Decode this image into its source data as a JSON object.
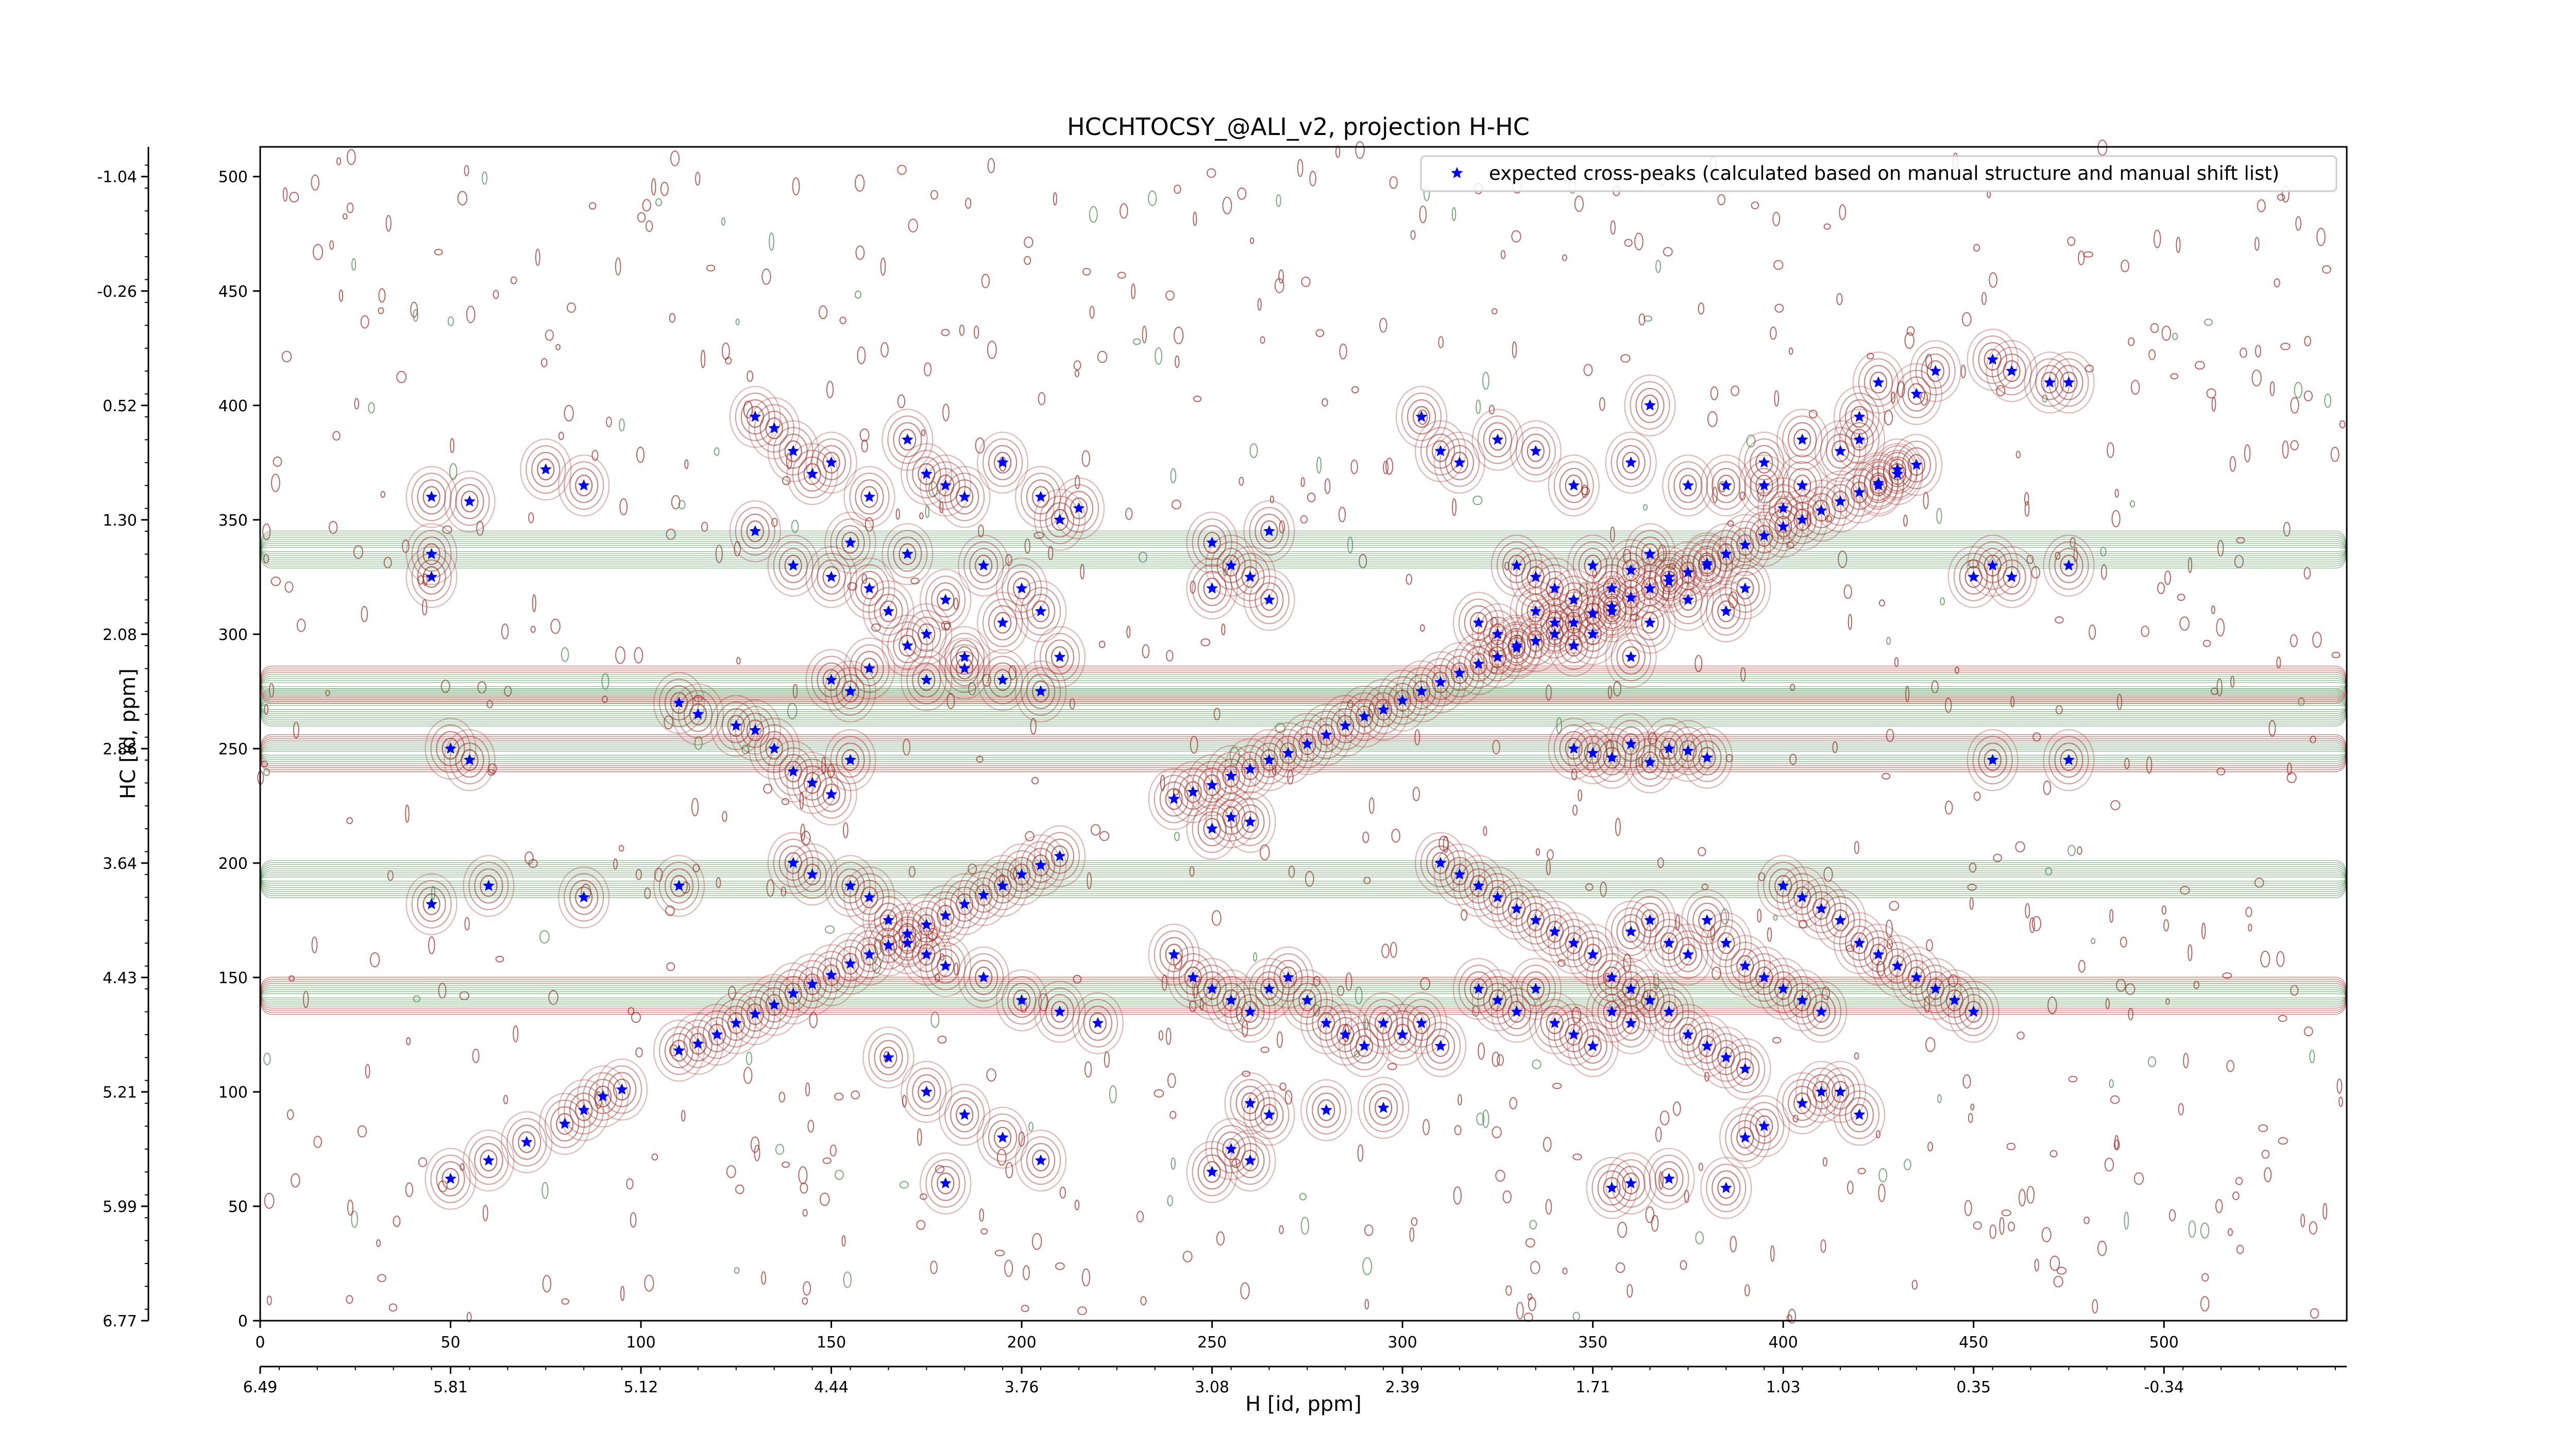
{
  "chart_data": {
    "type": "scatter",
    "title": "HCCHTOCSY_@ALI_v2, projection H-HC",
    "xlabel": "H [id, ppm]",
    "ylabel": "HC [id, ppm]",
    "xlim": [
      0,
      548
    ],
    "ylim": [
      0,
      513
    ],
    "x_ticks": [
      "0",
      "50",
      "100",
      "150",
      "200",
      "250",
      "300",
      "350",
      "400",
      "450",
      "500"
    ],
    "y_ticks": [
      "0",
      "50",
      "100",
      "150",
      "200",
      "250",
      "300",
      "350",
      "400",
      "450",
      "500"
    ],
    "x_secondary_ticks": {
      "positions": [
        0,
        50,
        100,
        150,
        200,
        250,
        300,
        350,
        400,
        450,
        500
      ],
      "labels": [
        "6.49",
        "5.81",
        "5.12",
        "4.44",
        "3.76",
        "3.08",
        "2.39",
        "1.71",
        "1.03",
        "0.35",
        "-0.34"
      ]
    },
    "y_secondary_ticks": {
      "positions": [
        0,
        50,
        100,
        150,
        200,
        250,
        300,
        350,
        400,
        450,
        500
      ],
      "labels": [
        "6.77",
        "5.99",
        "5.21",
        "4.43",
        "3.64",
        "2.86",
        "2.08",
        "1.30",
        "0.52",
        "-0.26",
        "-1.04"
      ]
    },
    "legend": {
      "placement": "top-right",
      "entries": [
        "expected cross-peaks (calculated based on manual structure and manual shift list)"
      ]
    },
    "grid": false,
    "series": [
      {
        "name": "expected cross-peaks (calculated based on manual structure and manual shift list)",
        "marker": "star",
        "color": "#0000ff",
        "points": [
          [
            110,
            118
          ],
          [
            115,
            121
          ],
          [
            120,
            125
          ],
          [
            125,
            130
          ],
          [
            130,
            134
          ],
          [
            135,
            138
          ],
          [
            140,
            143
          ],
          [
            145,
            147
          ],
          [
            150,
            151
          ],
          [
            155,
            156
          ],
          [
            160,
            160
          ],
          [
            165,
            164
          ],
          [
            170,
            169
          ],
          [
            175,
            173
          ],
          [
            180,
            177
          ],
          [
            185,
            182
          ],
          [
            190,
            186
          ],
          [
            195,
            190
          ],
          [
            200,
            195
          ],
          [
            205,
            199
          ],
          [
            210,
            203
          ],
          [
            240,
            228
          ],
          [
            245,
            231
          ],
          [
            250,
            234
          ],
          [
            255,
            238
          ],
          [
            260,
            241
          ],
          [
            265,
            245
          ],
          [
            270,
            248
          ],
          [
            275,
            252
          ],
          [
            280,
            256
          ],
          [
            285,
            260
          ],
          [
            290,
            264
          ],
          [
            295,
            267
          ],
          [
            300,
            271
          ],
          [
            305,
            275
          ],
          [
            310,
            279
          ],
          [
            315,
            283
          ],
          [
            320,
            287
          ],
          [
            325,
            290
          ],
          [
            330,
            294
          ],
          [
            335,
            297
          ],
          [
            340,
            300
          ],
          [
            345,
            305
          ],
          [
            350,
            309
          ],
          [
            355,
            312
          ],
          [
            360,
            316
          ],
          [
            365,
            320
          ],
          [
            370,
            323
          ],
          [
            375,
            327
          ],
          [
            380,
            331
          ],
          [
            385,
            335
          ],
          [
            390,
            339
          ],
          [
            395,
            343
          ],
          [
            400,
            347
          ],
          [
            405,
            350
          ],
          [
            410,
            354
          ],
          [
            415,
            358
          ],
          [
            420,
            362
          ],
          [
            425,
            366
          ],
          [
            430,
            370
          ],
          [
            435,
            374
          ],
          [
            50,
            62
          ],
          [
            60,
            70
          ],
          [
            70,
            78
          ],
          [
            80,
            86
          ],
          [
            85,
            92
          ],
          [
            90,
            98
          ],
          [
            95,
            101
          ],
          [
            45,
            360
          ],
          [
            55,
            358
          ],
          [
            75,
            372
          ],
          [
            85,
            365
          ],
          [
            45,
            325
          ],
          [
            45,
            335
          ],
          [
            45,
            182
          ],
          [
            60,
            190
          ],
          [
            85,
            185
          ],
          [
            110,
            190
          ],
          [
            55,
            245
          ],
          [
            50,
            250
          ],
          [
            250,
            215
          ],
          [
            255,
            220
          ],
          [
            260,
            218
          ],
          [
            345,
            250
          ],
          [
            350,
            248
          ],
          [
            355,
            246
          ],
          [
            360,
            252
          ],
          [
            365,
            244
          ],
          [
            370,
            250
          ],
          [
            375,
            249
          ],
          [
            380,
            246
          ],
          [
            455,
            245
          ],
          [
            475,
            245
          ],
          [
            460,
            415
          ],
          [
            470,
            410
          ],
          [
            475,
            410
          ],
          [
            455,
            420
          ],
          [
            440,
            415
          ],
          [
            425,
            410
          ],
          [
            435,
            405
          ],
          [
            455,
            330
          ],
          [
            460,
            325
          ],
          [
            475,
            330
          ],
          [
            450,
            325
          ],
          [
            250,
            340
          ],
          [
            255,
            330
          ],
          [
            260,
            325
          ],
          [
            265,
            345
          ],
          [
            250,
            320
          ],
          [
            265,
            315
          ],
          [
            405,
            365
          ],
          [
            425,
            365
          ],
          [
            395,
            375
          ],
          [
            420,
            385
          ],
          [
            430,
            372
          ],
          [
            400,
            355
          ],
          [
            330,
            330
          ],
          [
            335,
            325
          ],
          [
            340,
            320
          ],
          [
            345,
            315
          ],
          [
            350,
            330
          ],
          [
            355,
            320
          ],
          [
            360,
            328
          ],
          [
            365,
            335
          ],
          [
            370,
            325
          ],
          [
            375,
            315
          ],
          [
            380,
            330
          ],
          [
            385,
            310
          ],
          [
            390,
            320
          ],
          [
            320,
            305
          ],
          [
            325,
            300
          ],
          [
            330,
            295
          ],
          [
            335,
            310
          ],
          [
            340,
            305
          ],
          [
            345,
            295
          ],
          [
            350,
            300
          ],
          [
            355,
            310
          ],
          [
            360,
            290
          ],
          [
            365,
            305
          ],
          [
            305,
            395
          ],
          [
            310,
            380
          ],
          [
            315,
            375
          ],
          [
            325,
            385
          ],
          [
            335,
            380
          ],
          [
            345,
            365
          ],
          [
            360,
            375
          ],
          [
            365,
            400
          ],
          [
            375,
            365
          ],
          [
            385,
            365
          ],
          [
            395,
            365
          ],
          [
            405,
            385
          ],
          [
            415,
            380
          ],
          [
            420,
            395
          ],
          [
            130,
            395
          ],
          [
            135,
            390
          ],
          [
            140,
            380
          ],
          [
            145,
            370
          ],
          [
            150,
            375
          ],
          [
            160,
            360
          ],
          [
            170,
            385
          ],
          [
            175,
            370
          ],
          [
            180,
            365
          ],
          [
            185,
            360
          ],
          [
            195,
            375
          ],
          [
            205,
            360
          ],
          [
            210,
            350
          ],
          [
            215,
            355
          ],
          [
            130,
            345
          ],
          [
            140,
            330
          ],
          [
            150,
            325
          ],
          [
            155,
            340
          ],
          [
            160,
            320
          ],
          [
            165,
            310
          ],
          [
            170,
            335
          ],
          [
            175,
            300
          ],
          [
            180,
            315
          ],
          [
            185,
            290
          ],
          [
            190,
            330
          ],
          [
            195,
            305
          ],
          [
            200,
            320
          ],
          [
            205,
            310
          ],
          [
            210,
            290
          ],
          [
            150,
            280
          ],
          [
            155,
            275
          ],
          [
            160,
            285
          ],
          [
            170,
            295
          ],
          [
            175,
            280
          ],
          [
            185,
            285
          ],
          [
            195,
            280
          ],
          [
            205,
            275
          ],
          [
            110,
            270
          ],
          [
            115,
            265
          ],
          [
            125,
            260
          ],
          [
            130,
            258
          ],
          [
            135,
            250
          ],
          [
            140,
            240
          ],
          [
            145,
            235
          ],
          [
            150,
            230
          ],
          [
            155,
            245
          ],
          [
            140,
            200
          ],
          [
            145,
            195
          ],
          [
            155,
            190
          ],
          [
            160,
            185
          ],
          [
            165,
            175
          ],
          [
            170,
            165
          ],
          [
            175,
            160
          ],
          [
            180,
            155
          ],
          [
            190,
            150
          ],
          [
            200,
            140
          ],
          [
            210,
            135
          ],
          [
            220,
            130
          ],
          [
            165,
            115
          ],
          [
            175,
            100
          ],
          [
            185,
            90
          ],
          [
            195,
            80
          ],
          [
            205,
            70
          ],
          [
            180,
            60
          ],
          [
            240,
            160
          ],
          [
            245,
            150
          ],
          [
            250,
            145
          ],
          [
            255,
            140
          ],
          [
            260,
            135
          ],
          [
            265,
            145
          ],
          [
            270,
            150
          ],
          [
            275,
            140
          ],
          [
            280,
            130
          ],
          [
            285,
            125
          ],
          [
            290,
            120
          ],
          [
            295,
            130
          ],
          [
            300,
            125
          ],
          [
            305,
            130
          ],
          [
            310,
            120
          ],
          [
            260,
            95
          ],
          [
            265,
            90
          ],
          [
            280,
            92
          ],
          [
            295,
            93
          ],
          [
            255,
            75
          ],
          [
            260,
            70
          ],
          [
            250,
            65
          ],
          [
            310,
            200
          ],
          [
            315,
            195
          ],
          [
            320,
            190
          ],
          [
            325,
            185
          ],
          [
            330,
            180
          ],
          [
            335,
            175
          ],
          [
            340,
            170
          ],
          [
            345,
            165
          ],
          [
            350,
            160
          ],
          [
            355,
            150
          ],
          [
            360,
            145
          ],
          [
            365,
            140
          ],
          [
            370,
            135
          ],
          [
            375,
            125
          ],
          [
            380,
            120
          ],
          [
            385,
            115
          ],
          [
            390,
            110
          ],
          [
            320,
            145
          ],
          [
            325,
            140
          ],
          [
            330,
            135
          ],
          [
            335,
            145
          ],
          [
            340,
            130
          ],
          [
            345,
            125
          ],
          [
            350,
            120
          ],
          [
            355,
            135
          ],
          [
            360,
            130
          ],
          [
            360,
            170
          ],
          [
            365,
            175
          ],
          [
            370,
            165
          ],
          [
            375,
            160
          ],
          [
            380,
            175
          ],
          [
            385,
            165
          ],
          [
            390,
            155
          ],
          [
            395,
            150
          ],
          [
            400,
            145
          ],
          [
            405,
            140
          ],
          [
            410,
            135
          ],
          [
            400,
            190
          ],
          [
            405,
            185
          ],
          [
            410,
            180
          ],
          [
            415,
            175
          ],
          [
            420,
            165
          ],
          [
            425,
            160
          ],
          [
            430,
            155
          ],
          [
            435,
            150
          ],
          [
            440,
            145
          ],
          [
            445,
            140
          ],
          [
            450,
            135
          ],
          [
            390,
            80
          ],
          [
            395,
            85
          ],
          [
            405,
            95
          ],
          [
            410,
            100
          ],
          [
            420,
            90
          ],
          [
            415,
            100
          ],
          [
            355,
            58
          ],
          [
            360,
            60
          ],
          [
            370,
            62
          ],
          [
            385,
            58
          ]
        ]
      }
    ],
    "contour_bands": {
      "description_colors": {
        "positive": "#a0302a",
        "negative": "#4c8c50"
      },
      "horizontal_ridges_hc": [
        248,
        268,
        278,
        193,
        142,
        337
      ]
    }
  }
}
